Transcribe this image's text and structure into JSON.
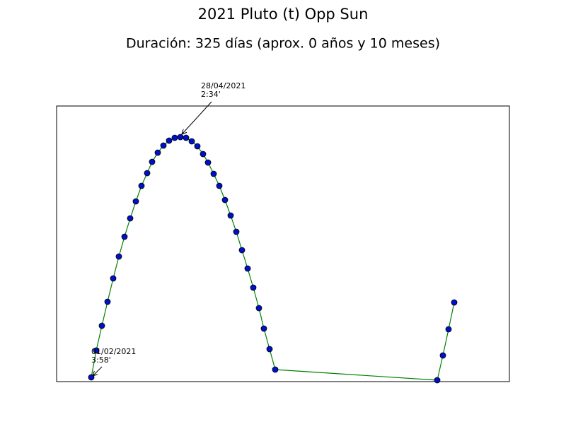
{
  "chart_data": {
    "type": "line",
    "title": "2021 Pluto (t) Opp Sun",
    "subtitle": "Duración: 325 días (aprox. 0 años y 10 meses)",
    "x": [
      49,
      56,
      64,
      72,
      80,
      88,
      96,
      104,
      112,
      120,
      128,
      135,
      143,
      151,
      159,
      167,
      175,
      183,
      191,
      199,
      207,
      214,
      222,
      230,
      238,
      246,
      254,
      262,
      270,
      278,
      286,
      293,
      301,
      309,
      538,
      546,
      554,
      562
    ],
    "series": [
      {
        "line_color": "green",
        "marker_color": "#0010c8",
        "values": [
          6,
          44,
          79,
          113,
          146,
          177,
          205,
          231,
          255,
          277,
          295,
          311,
          324,
          334,
          341,
          345,
          346,
          345,
          340,
          333,
          322,
          310,
          294,
          277,
          257,
          235,
          212,
          186,
          160,
          133,
          104,
          75,
          46,
          17,
          2,
          37,
          74,
          112
        ]
      }
    ],
    "xlim": [
      0,
      640
    ],
    "ylim": [
      0,
      390
    ],
    "annotations": [
      {
        "lines": [
          "28/04/2021",
          "2:34'"
        ]
      },
      {
        "lines": [
          "01/02/2021",
          "3:58'"
        ]
      }
    ]
  }
}
